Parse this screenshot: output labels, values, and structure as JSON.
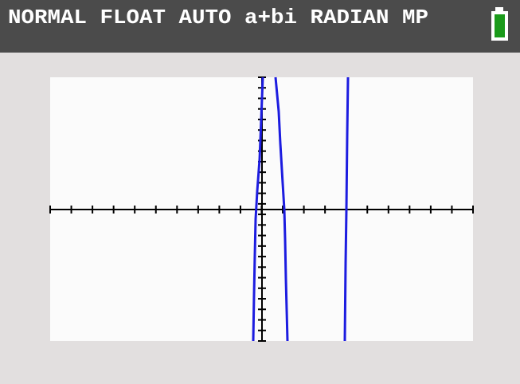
{
  "status_bar": {
    "text": "NORMAL FLOAT AUTO a+bi RADIAN MP"
  }
}
